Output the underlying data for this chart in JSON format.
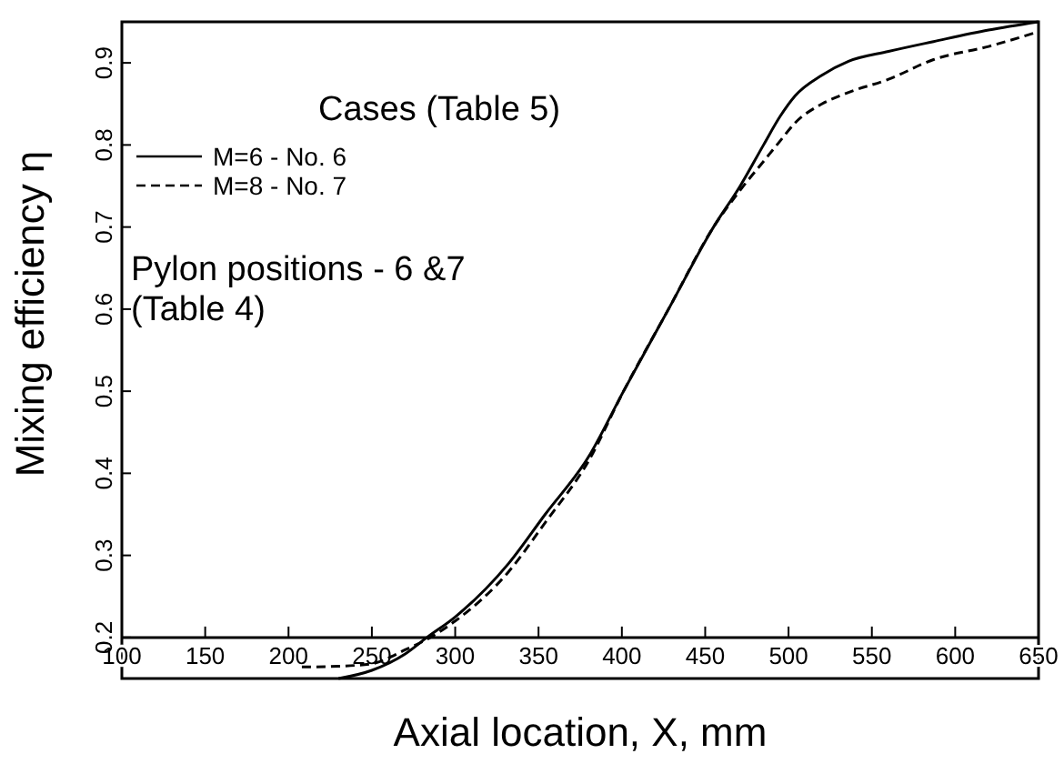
{
  "chart_data": {
    "type": "line",
    "xlabel": "Axial location, X, mm",
    "ylabel": "Mixing efficiency η",
    "legend_title": "Cases (Table 5)",
    "legend": "top left",
    "marker": "none",
    "annotations": [
      "Pylon positions - 6 &7\n(Table 4)"
    ],
    "xlim": [
      100,
      650
    ],
    "xticks": [
      100,
      150,
      200,
      250,
      300,
      350,
      400,
      450,
      500,
      550,
      600,
      650
    ],
    "ylim": [
      0.15,
      0.95
    ],
    "yticks": [
      0.2,
      0.3,
      0.4,
      0.5,
      0.6,
      0.7,
      0.8,
      0.9
    ],
    "series": [
      {
        "name": "M=6 - No. 6",
        "color": "#000000",
        "line_style": "solid",
        "x": [
          230,
          250,
          270,
          283,
          300,
          332,
          354,
          380,
          401,
          428,
          455,
          471,
          485,
          495,
          504,
          520,
          536,
          560,
          587,
          620,
          650
        ],
        "values": [
          0.15,
          0.16,
          0.18,
          0.2,
          0.225,
          0.29,
          0.35,
          0.42,
          0.5,
          0.6,
          0.7,
          0.75,
          0.8,
          0.835,
          0.86,
          0.885,
          0.902,
          0.914,
          0.926,
          0.94,
          0.95
        ]
      },
      {
        "name": "M=8 - No. 7",
        "color": "#000000",
        "line_style": "dashed",
        "x": [
          208,
          230,
          250,
          270,
          285,
          300,
          332,
          354,
          380,
          401,
          428,
          455,
          471,
          485,
          495,
          504,
          520,
          536,
          560,
          587,
          620,
          650
        ],
        "values": [
          0.164,
          0.165,
          0.168,
          0.185,
          0.2,
          0.22,
          0.28,
          0.34,
          0.415,
          0.5,
          0.6,
          0.7,
          0.745,
          0.78,
          0.805,
          0.827,
          0.85,
          0.864,
          0.88,
          0.904,
          0.92,
          0.938
        ]
      }
    ]
  }
}
